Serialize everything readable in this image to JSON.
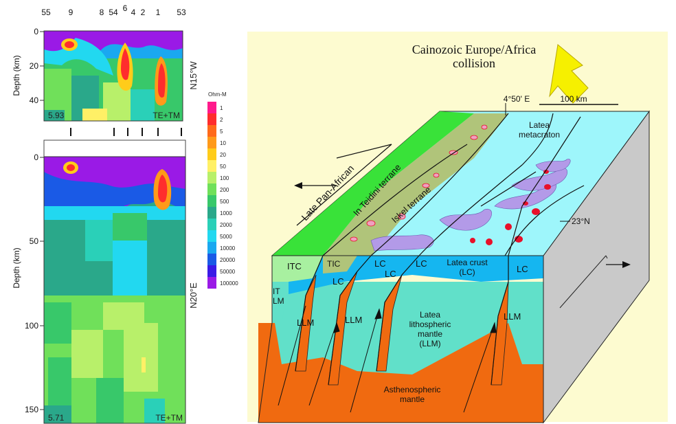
{
  "left_panel": {
    "station_labels": [
      "55",
      "9",
      "8",
      "54",
      "6",
      "4",
      "2",
      "1",
      "53"
    ],
    "top_section": {
      "depth_axis_label": "Depth (km)",
      "depth_ticks": [
        "0",
        "20",
        "40"
      ],
      "rms": "5.93",
      "mode": "TE+TM",
      "orientation": "N15°W"
    },
    "bottom_section": {
      "depth_axis_label": "Depth (km)",
      "depth_ticks": [
        "0",
        "50",
        "100",
        "150"
      ],
      "rms": "5.71",
      "mode": "TE+TM",
      "orientation": "N20°E"
    }
  },
  "colorbar": {
    "unit": "Ohm-M",
    "levels": [
      {
        "label": "1",
        "color": "#ff1a8c"
      },
      {
        "label": "2",
        "color": "#ff2d2d"
      },
      {
        "label": "5",
        "color": "#ff6a1a"
      },
      {
        "label": "10",
        "color": "#ff9a1a"
      },
      {
        "label": "20",
        "color": "#ffcc1a"
      },
      {
        "label": "50",
        "color": "#fff066"
      },
      {
        "label": "100",
        "color": "#b8f06a"
      },
      {
        "label": "200",
        "color": "#70e05a"
      },
      {
        "label": "500",
        "color": "#38c86a"
      },
      {
        "label": "1000",
        "color": "#2aa88a"
      },
      {
        "label": "2000",
        "color": "#2ad0b8"
      },
      {
        "label": "5000",
        "color": "#22d8f0"
      },
      {
        "label": "10000",
        "color": "#1aa8f0"
      },
      {
        "label": "20000",
        "color": "#1a5ae6"
      },
      {
        "label": "50000",
        "color": "#3a1ae6"
      },
      {
        "label": "100000",
        "color": "#9a1ae6"
      }
    ]
  },
  "block_diagram": {
    "title_line1": "Cainozoic Europe/Africa",
    "title_line2": "collision",
    "longitude": "4°50' E",
    "scale": "100 km",
    "latitude": "23°N",
    "late_pan_african": "Late Pan-African",
    "in_teidini": "In Teidini terrane",
    "iskel": "Iskel terrane",
    "metacraton_line1": "Latea",
    "metacraton_line2": "metacraton",
    "itc": "ITC",
    "tic": "TIC",
    "lc": "LC",
    "latea_crust_line1": "Latea crust",
    "latea_crust_line2": "(LC)",
    "it": "IT",
    "lm": "LM",
    "llm": "LLM",
    "lith_line1": "Latea",
    "lith_line2": "lithospheric",
    "lith_line3": "mantle",
    "lith_line4": "(LLM)",
    "astheno_line1": "Asthenospheric",
    "astheno_line2": "mantle",
    "colors": {
      "background": "#fdfbd0",
      "in_teidini": "#39e239",
      "iskel": "#b0c47a",
      "latea": "#9ef6fb",
      "crust": "#15b6f0",
      "lithosphere": "#61e0c9",
      "asthenosphere": "#f06a10",
      "side_face": "#c9c9c9",
      "volcanic": "#b39ae8",
      "arrow": "#f6f000"
    }
  }
}
